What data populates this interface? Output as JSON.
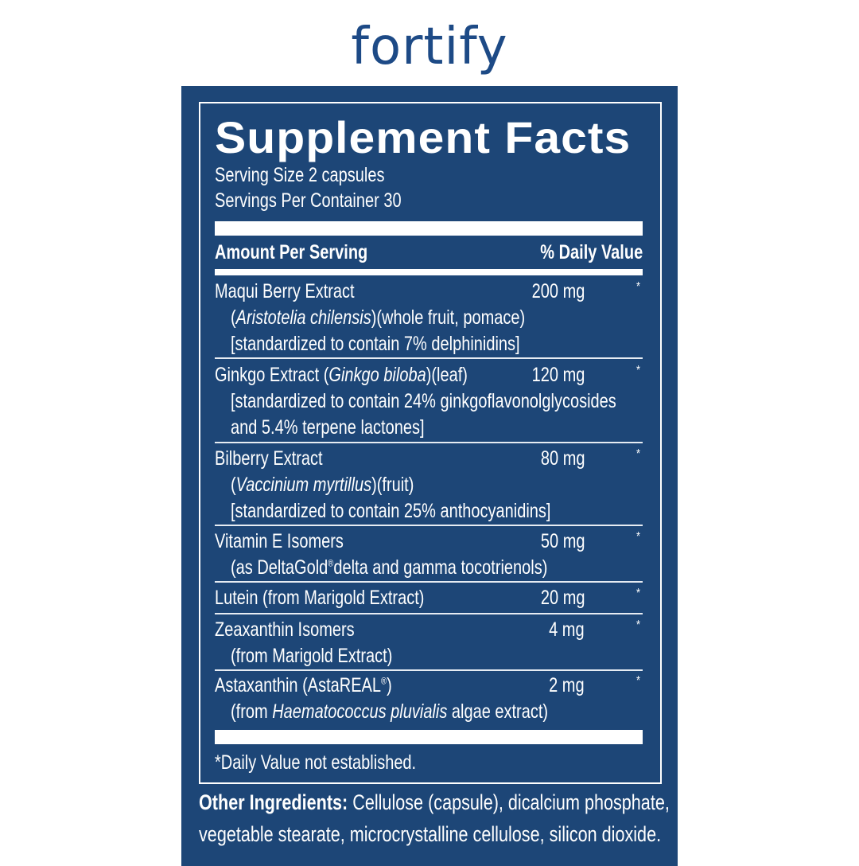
{
  "brand": "fortify",
  "colors": {
    "panel": "#1d4677",
    "brand": "#1d4a86",
    "text": "#ffffff"
  },
  "title": "Supplement Facts",
  "serving_size": "Serving Size 2 capsules",
  "servings_per_container": "Servings Per Container 30",
  "header": {
    "amount": "Amount Per Serving",
    "dv": "% Daily Value"
  },
  "ingredients": [
    {
      "lines": [
        [
          [
            "Maqui Berry Extract",
            ""
          ]
        ],
        [
          [
            "(",
            ""
          ],
          [
            "Aristotelia chilensis",
            "i"
          ],
          [
            ")(whole fruit, pomace)",
            ""
          ]
        ],
        [
          [
            "[standardized to contain 7% delphinidins]",
            ""
          ]
        ]
      ],
      "amount": "200 mg",
      "dv": "*"
    },
    {
      "lines": [
        [
          [
            "Ginkgo Extract (",
            ""
          ],
          [
            "Ginkgo biloba",
            "i"
          ],
          [
            ")(leaf)",
            ""
          ]
        ],
        [
          [
            "[standardized to contain 24% ginkgoflavonolglycosides",
            ""
          ]
        ],
        [
          [
            "and 5.4% terpene lactones]",
            ""
          ]
        ]
      ],
      "amount": "120 mg",
      "dv": "*"
    },
    {
      "lines": [
        [
          [
            "Bilberry Extract",
            ""
          ]
        ],
        [
          [
            "(",
            ""
          ],
          [
            "Vaccinium myrtillus",
            "i"
          ],
          [
            ")(fruit)",
            ""
          ]
        ],
        [
          [
            "[standardized to contain 25% anthocyanidins]",
            ""
          ]
        ]
      ],
      "amount": "80 mg",
      "dv": "*"
    },
    {
      "lines": [
        [
          [
            "Vitamin E Isomers",
            ""
          ]
        ],
        [
          [
            "(as DeltaGold",
            ""
          ],
          [
            "®",
            "s"
          ],
          [
            "delta and gamma tocotrienols)",
            ""
          ]
        ]
      ],
      "amount": "50 mg",
      "dv": "*"
    },
    {
      "lines": [
        [
          [
            "Lutein (from Marigold Extract)",
            ""
          ]
        ]
      ],
      "amount": "20 mg",
      "dv": "*"
    },
    {
      "lines": [
        [
          [
            "Zeaxanthin Isomers",
            ""
          ]
        ],
        [
          [
            "(from Marigold Extract)",
            ""
          ]
        ]
      ],
      "amount": "4 mg",
      "dv": "*"
    },
    {
      "lines": [
        [
          [
            "Astaxanthin (AstaREAL",
            ""
          ],
          [
            "®",
            "s"
          ],
          [
            ")",
            ""
          ]
        ],
        [
          [
            "(from ",
            ""
          ],
          [
            "Haematococcus pluvialis",
            "i"
          ],
          [
            " algae extract)",
            ""
          ]
        ]
      ],
      "amount": "2 mg",
      "dv": "*"
    }
  ],
  "footnote": "*Daily Value not established.",
  "other": {
    "label": "Other Ingredients:",
    "line1": " Cellulose (capsule), dicalcium phosphate,",
    "line2": "vegetable stearate, microcrystalline cellulose, silicon dioxide."
  }
}
